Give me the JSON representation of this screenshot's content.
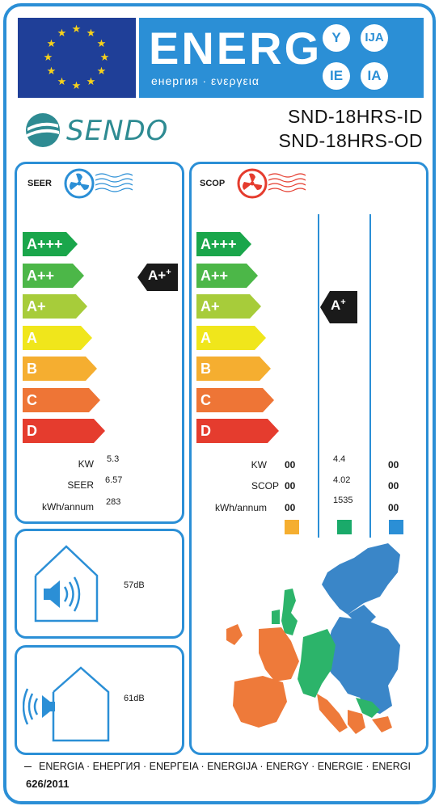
{
  "header": {
    "energ_word": "ENERG",
    "energ_sub": "енергия · ενεργεια",
    "badges": [
      "Y",
      "IJA",
      "IE",
      "IA"
    ]
  },
  "brand": {
    "name": "SENDO"
  },
  "models": {
    "indoor": "SND-18HRS-ID",
    "outdoor": "SND-18HRS-OD"
  },
  "cooling": {
    "title": "SEER",
    "scale": [
      "A+++",
      "A++",
      "A+",
      "A",
      "B",
      "C",
      "D"
    ],
    "rating": "A+",
    "rating_sup": "+",
    "labels": {
      "kw": "KW",
      "seer": "SEER",
      "kwh": "kWh/annum"
    },
    "values": {
      "kw": "5.3",
      "seer": "6.57",
      "kwh": "283"
    }
  },
  "heating": {
    "title": "SCOP",
    "scale": [
      "A+++",
      "A++",
      "A+",
      "A",
      "B",
      "C",
      "D"
    ],
    "rating": "A",
    "rating_sup": "+",
    "labels": {
      "kw": "KW",
      "scop": "SCOP",
      "kwh": "kWh/annum"
    },
    "warmer": {
      "kw": "00",
      "scop": "00",
      "kwh": "00"
    },
    "average": {
      "kw": "4.4",
      "scop": "4.02",
      "kwh": "1535"
    },
    "colder": {
      "kw": "00",
      "scop": "00",
      "kwh": "00"
    }
  },
  "noise": {
    "indoor": "57dB",
    "outdoor": "61dB"
  },
  "footer": {
    "languages": "ENERGIA · ЕНЕРГИЯ · ΕΝΕΡΓΕΙΑ · ENERGIJA · ENERGY · ENERGIE · ENERGI",
    "regulation": "626/2011"
  },
  "colors": {
    "frame": "#2b8fd6",
    "eu_blue": "#1f3f98",
    "star": "#f7d21b",
    "scale": [
      "#1aa64b",
      "#4cb748",
      "#a7cc3a",
      "#f0e61b",
      "#f5ae30",
      "#ee7536",
      "#e53c2e"
    ],
    "zone_warmer": "#f5ae30",
    "zone_average": "#1aaa6a",
    "zone_colder": "#2b8fd6",
    "map_orange": "#ee7a3a",
    "map_green": "#2cb46a",
    "map_blue": "#3a86c8"
  }
}
